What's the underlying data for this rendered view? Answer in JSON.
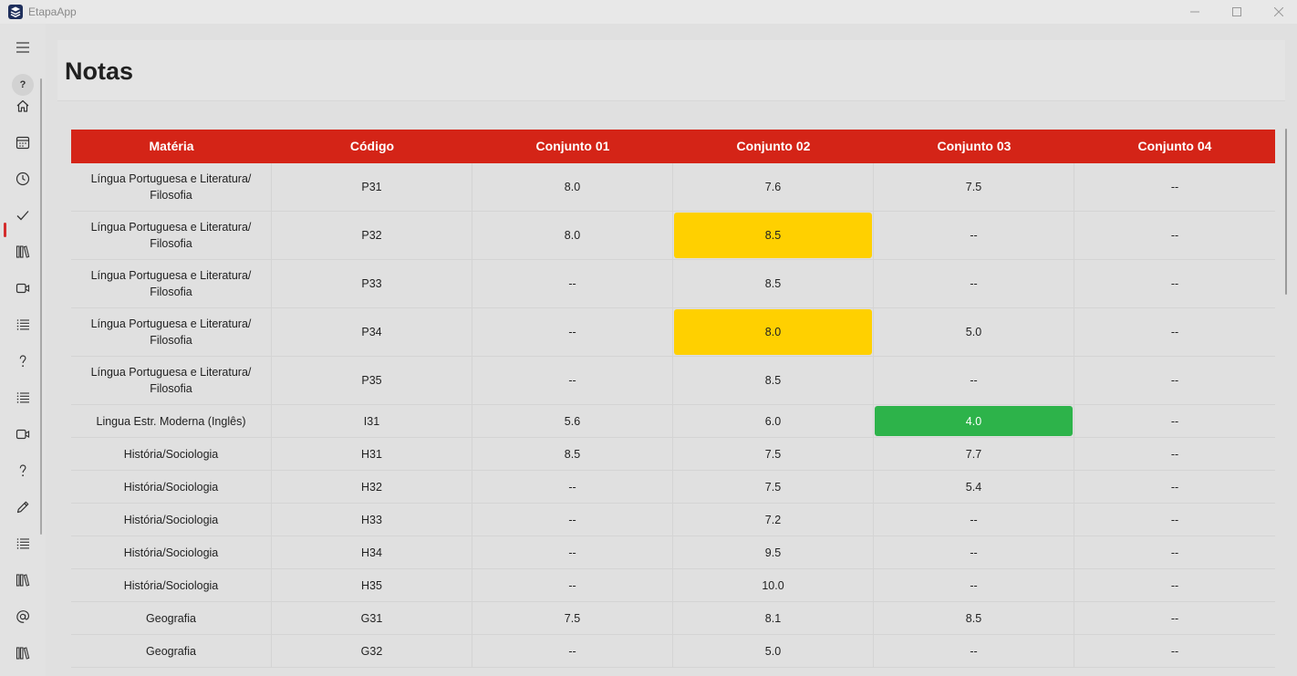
{
  "window": {
    "title": "EtapaApp"
  },
  "page": {
    "title": "Notas"
  },
  "colors": {
    "header_red": "#d42417",
    "yellow": "#ffd000",
    "green": "#2db34a",
    "active_accent": "#d42d2d"
  },
  "sidebar": {
    "help_label": "?",
    "items": [
      {
        "icon": "home-icon"
      },
      {
        "icon": "calendar-icon"
      },
      {
        "icon": "clock-icon"
      },
      {
        "icon": "check-icon",
        "active": true
      },
      {
        "icon": "books-icon"
      },
      {
        "icon": "video-icon"
      },
      {
        "icon": "list-icon"
      },
      {
        "icon": "question-icon"
      },
      {
        "icon": "list-icon"
      },
      {
        "icon": "video-icon"
      },
      {
        "icon": "question-icon"
      },
      {
        "icon": "pencil-icon"
      },
      {
        "icon": "list-icon"
      },
      {
        "icon": "books-icon"
      },
      {
        "icon": "at-icon"
      },
      {
        "icon": "books-icon"
      }
    ]
  },
  "table": {
    "headers": [
      "Matéria",
      "Código",
      "Conjunto 01",
      "Conjunto 02",
      "Conjunto 03",
      "Conjunto 04"
    ],
    "rows": [
      {
        "materia": "Língua Portuguesa e Literatura/ Filosofia",
        "codigo": "P31",
        "c1": "8.0",
        "c2": "7.6",
        "c3": "7.5",
        "c4": "--"
      },
      {
        "materia": "Língua Portuguesa e Literatura/ Filosofia",
        "codigo": "P32",
        "c1": "8.0",
        "c2": "8.5",
        "c3": "--",
        "c4": "--",
        "highlight": {
          "c2": "yellow"
        }
      },
      {
        "materia": "Língua Portuguesa e Literatura/ Filosofia",
        "codigo": "P33",
        "c1": "--",
        "c2": "8.5",
        "c3": "--",
        "c4": "--"
      },
      {
        "materia": "Língua Portuguesa e Literatura/ Filosofia",
        "codigo": "P34",
        "c1": "--",
        "c2": "8.0",
        "c3": "5.0",
        "c4": "--",
        "highlight": {
          "c2": "yellow"
        }
      },
      {
        "materia": "Língua Portuguesa e Literatura/ Filosofia",
        "codigo": "P35",
        "c1": "--",
        "c2": "8.5",
        "c3": "--",
        "c4": "--"
      },
      {
        "materia": "Lingua Estr. Moderna (Inglês)",
        "codigo": "I31",
        "c1": "5.6",
        "c2": "6.0",
        "c3": "4.0",
        "c4": "--",
        "highlight": {
          "c3": "green"
        }
      },
      {
        "materia": "História/Sociologia",
        "codigo": "H31",
        "c1": "8.5",
        "c2": "7.5",
        "c3": "7.7",
        "c4": "--"
      },
      {
        "materia": "História/Sociologia",
        "codigo": "H32",
        "c1": "--",
        "c2": "7.5",
        "c3": "5.4",
        "c4": "--"
      },
      {
        "materia": "História/Sociologia",
        "codigo": "H33",
        "c1": "--",
        "c2": "7.2",
        "c3": "--",
        "c4": "--"
      },
      {
        "materia": "História/Sociologia",
        "codigo": "H34",
        "c1": "--",
        "c2": "9.5",
        "c3": "--",
        "c4": "--"
      },
      {
        "materia": "História/Sociologia",
        "codigo": "H35",
        "c1": "--",
        "c2": "10.0",
        "c3": "--",
        "c4": "--"
      },
      {
        "materia": "Geografia",
        "codigo": "G31",
        "c1": "7.5",
        "c2": "8.1",
        "c3": "8.5",
        "c4": "--"
      },
      {
        "materia": "Geografia",
        "codigo": "G32",
        "c1": "--",
        "c2": "5.0",
        "c3": "--",
        "c4": "--"
      }
    ]
  }
}
